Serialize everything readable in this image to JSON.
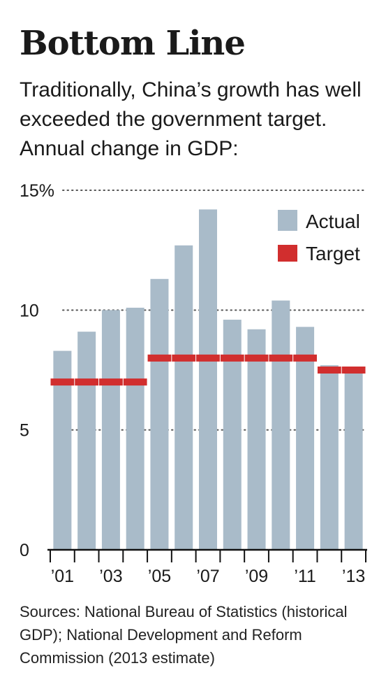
{
  "header": {
    "title": "Bottom Line",
    "subtitle": "Traditionally, China’s growth has well exceeded the government target. Annual change in GDP:"
  },
  "footer": {
    "source": "Sources: National Bureau of Statistics (historical GDP); National Development and Reform Commission (2013 estimate)"
  },
  "chart_data": {
    "type": "bar",
    "title": "Bottom Line",
    "xlabel": "",
    "ylabel": "",
    "ylim": [
      0,
      15
    ],
    "y_ticks": [
      0,
      5,
      10,
      15
    ],
    "y_tick_labels": [
      "0",
      "5",
      "10",
      "15%"
    ],
    "categories": [
      "2001",
      "2002",
      "2003",
      "2004",
      "2005",
      "2006",
      "2007",
      "2008",
      "2009",
      "2010",
      "2011",
      "2012",
      "2013"
    ],
    "x_tick_labels": [
      "’01",
      "",
      "’03",
      "",
      "’05",
      "",
      "’07",
      "",
      "’09",
      "",
      "’11",
      "",
      "’13"
    ],
    "grid": true,
    "legend_position": "top-right",
    "series": [
      {
        "name": "Actual",
        "color": "#a9bbc9",
        "values": [
          8.3,
          9.1,
          10.0,
          10.1,
          11.3,
          12.7,
          14.2,
          9.6,
          9.2,
          10.4,
          9.3,
          7.7,
          7.6
        ]
      },
      {
        "name": "Target",
        "color": "#d12e2e",
        "values": [
          7.0,
          7.0,
          7.0,
          7.0,
          8.0,
          8.0,
          8.0,
          8.0,
          8.0,
          8.0,
          8.0,
          7.5,
          7.5
        ]
      }
    ]
  }
}
